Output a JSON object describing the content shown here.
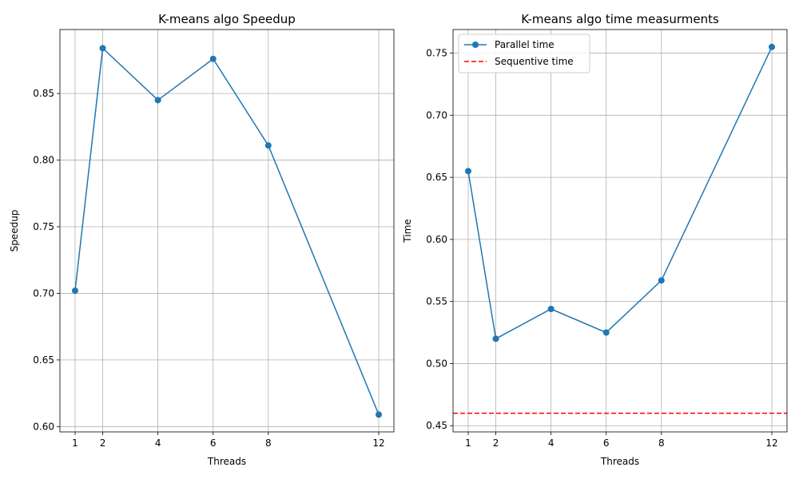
{
  "chart_data": [
    {
      "type": "line",
      "title": "K-means algo Speedup",
      "xlabel": "Threads",
      "ylabel": "Speedup",
      "grid": true,
      "xlim": [
        0.45,
        12.55
      ],
      "ylim": [
        0.596,
        0.898
      ],
      "x": [
        1,
        2,
        4,
        6,
        8,
        12
      ],
      "xticks": [
        "1",
        "2",
        "4",
        "6",
        "8",
        "12"
      ],
      "yticks": [
        "0.60",
        "0.65",
        "0.70",
        "0.75",
        "0.80",
        "0.85"
      ],
      "series": [
        {
          "color": "#1f77b4",
          "marker": "circle",
          "values": [
            0.702,
            0.884,
            0.845,
            0.876,
            0.811,
            0.609
          ]
        }
      ]
    },
    {
      "type": "line",
      "title": "K-means algo time measurments",
      "xlabel": "Threads",
      "ylabel": "Time",
      "grid": true,
      "legend": "top-left",
      "xlim": [
        0.45,
        12.55
      ],
      "ylim": [
        0.445,
        0.769
      ],
      "x": [
        1,
        2,
        4,
        6,
        8,
        12
      ],
      "xticks": [
        "1",
        "2",
        "4",
        "6",
        "8",
        "12"
      ],
      "yticks": [
        "0.45",
        "0.50",
        "0.55",
        "0.60",
        "0.65",
        "0.70",
        "0.75"
      ],
      "series": [
        {
          "name": "Parallel time",
          "color": "#1f77b4",
          "marker": "circle",
          "values": [
            0.655,
            0.52,
            0.544,
            0.525,
            0.567,
            0.755
          ]
        }
      ],
      "reference_lines": [
        {
          "name": "Sequentive time",
          "color": "#ff0000",
          "style": "dashed",
          "y": 0.46
        }
      ]
    }
  ]
}
